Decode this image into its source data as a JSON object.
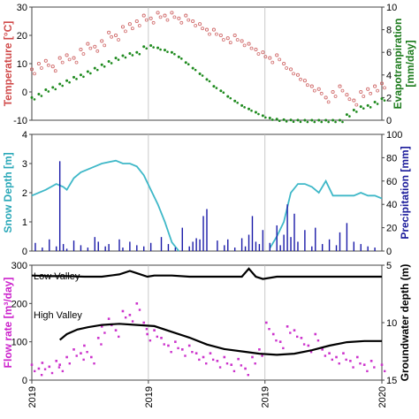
{
  "chart_data": [
    {
      "type": "scatter",
      "panel": "top",
      "ylabel_left": "Temperature [°C]",
      "ylabel_right": "Evapotranpiration [mm/day]",
      "ylim_left": [
        -10,
        30
      ],
      "ylim_right": [
        0,
        10
      ],
      "yticks_left": [
        "-10",
        "0",
        "10",
        "20",
        "30"
      ],
      "yticks_right": [
        "0",
        "2",
        "4",
        "6",
        "8",
        "10"
      ],
      "colors": {
        "temperature": "#d06a6a",
        "evapotranspiration": "#1e8a1e",
        "axis_left": "#d04a4a",
        "axis_right": "#1a7a1a"
      },
      "series": [
        {
          "name": "Temperature",
          "axis": "left",
          "x": [
            0.0,
            0.02,
            0.04,
            0.06,
            0.08,
            0.1,
            0.12,
            0.14,
            0.16,
            0.18,
            0.2,
            0.22,
            0.24,
            0.26,
            0.28,
            0.3,
            0.32,
            0.34,
            0.36,
            0.38,
            0.4,
            0.42,
            0.44,
            0.46,
            0.48,
            0.5,
            0.52,
            0.54,
            0.56,
            0.58,
            0.6,
            0.62,
            0.64,
            0.66,
            0.68,
            0.7,
            0.72,
            0.74,
            0.76,
            0.78,
            0.8,
            0.82,
            0.84,
            0.86,
            0.88,
            0.9,
            0.92,
            0.94,
            0.96,
            0.98,
            1.0
          ],
          "y": [
            8,
            10,
            11,
            9,
            12,
            13,
            12,
            15,
            17,
            16,
            18,
            21,
            20,
            23,
            24,
            25,
            27,
            26,
            28,
            27,
            28,
            26,
            27,
            25,
            24,
            22,
            22,
            20,
            19,
            20,
            18,
            17,
            15,
            14,
            12,
            13,
            10,
            8,
            6,
            4,
            2,
            1,
            -2,
            0,
            2,
            -1,
            -3,
            0,
            1,
            2,
            3
          ]
        },
        {
          "name": "Evapotranspiration",
          "axis": "right",
          "x": [
            0.0,
            0.02,
            0.04,
            0.06,
            0.08,
            0.1,
            0.12,
            0.14,
            0.16,
            0.18,
            0.2,
            0.22,
            0.24,
            0.26,
            0.28,
            0.3,
            0.32,
            0.34,
            0.36,
            0.38,
            0.4,
            0.42,
            0.44,
            0.46,
            0.48,
            0.5,
            0.52,
            0.54,
            0.56,
            0.58,
            0.6,
            0.62,
            0.64,
            0.66,
            0.68,
            0.7,
            0.72,
            0.74,
            0.76,
            0.78,
            0.8,
            0.82,
            0.84,
            0.86,
            0.88,
            0.9,
            0.92,
            0.94,
            0.96,
            0.98,
            1.0
          ],
          "y": [
            2.0,
            2.3,
            2.7,
            2.9,
            3.2,
            3.5,
            3.8,
            4.0,
            4.3,
            4.6,
            4.9,
            5.2,
            5.5,
            5.7,
            5.9,
            6.0,
            6.5,
            6.6,
            6.4,
            6.2,
            6.0,
            5.6,
            5.1,
            4.6,
            4.1,
            3.6,
            3.0,
            2.6,
            2.1,
            1.7,
            1.3,
            1.0,
            0.7,
            0.4,
            0.2,
            0.1,
            0.05,
            0.02,
            0.01,
            0.0,
            0.0,
            0.0,
            0.0,
            0.0,
            0.0,
            0.5,
            0.9,
            1.2,
            1.3,
            1.6,
            1.9
          ]
        }
      ]
    },
    {
      "type": "line",
      "panel": "middle",
      "ylabel_left": "Snow Depth [m]",
      "ylabel_right": "Precipitation [mm]",
      "ylim_left": [
        0,
        4
      ],
      "ylim_right": [
        0,
        100
      ],
      "yticks_left": [
        "0",
        "1",
        "2",
        "3",
        "4"
      ],
      "yticks_right": [
        "0",
        "20",
        "40",
        "60",
        "80",
        "100"
      ],
      "colors": {
        "snow": "#3fb8c8",
        "precipitation": "#1a1aa8",
        "axis_left": "#2aa8b8",
        "axis_right": "#1a1a9a"
      },
      "series": [
        {
          "name": "Snow Depth",
          "axis": "left",
          "x": [
            0.0,
            0.04,
            0.07,
            0.09,
            0.1,
            0.12,
            0.14,
            0.18,
            0.2,
            0.24,
            0.26,
            0.28,
            0.3,
            0.32,
            0.34,
            0.36,
            0.38,
            0.4,
            0.42,
            0.44,
            0.46,
            0.48,
            0.5,
            0.52,
            0.54,
            0.56,
            0.58,
            0.6,
            0.62,
            0.64,
            0.66,
            0.68,
            0.7,
            0.72,
            0.74,
            0.76,
            0.78,
            0.8,
            0.82,
            0.84,
            0.86,
            0.88,
            0.9,
            0.92,
            0.94,
            0.96,
            0.98,
            1.0
          ],
          "y": [
            1.9,
            2.1,
            2.3,
            2.2,
            2.1,
            2.5,
            2.7,
            2.9,
            3.0,
            3.1,
            3.0,
            3.0,
            2.9,
            2.6,
            2.1,
            1.6,
            1.0,
            0.3,
            0.0,
            null,
            null,
            null,
            null,
            null,
            null,
            null,
            null,
            null,
            null,
            null,
            null,
            0.1,
            0.5,
            1.0,
            2.0,
            2.3,
            2.3,
            2.2,
            2.0,
            2.4,
            1.9,
            1.9,
            1.9,
            1.9,
            2.0,
            1.9,
            1.9,
            1.8
          ]
        },
        {
          "name": "Precipitation",
          "axis": "right",
          "type": "bar",
          "x": [
            0.01,
            0.03,
            0.05,
            0.07,
            0.08,
            0.09,
            0.1,
            0.12,
            0.14,
            0.16,
            0.18,
            0.19,
            0.21,
            0.22,
            0.25,
            0.26,
            0.28,
            0.3,
            0.32,
            0.34,
            0.37,
            0.39,
            0.41,
            0.43,
            0.45,
            0.46,
            0.47,
            0.48,
            0.49,
            0.5,
            0.53,
            0.55,
            0.56,
            0.58,
            0.6,
            0.61,
            0.62,
            0.63,
            0.64,
            0.65,
            0.66,
            0.68,
            0.7,
            0.71,
            0.72,
            0.73,
            0.74,
            0.75,
            0.76,
            0.78,
            0.8,
            0.81,
            0.83,
            0.85,
            0.87,
            0.88,
            0.9,
            0.92,
            0.94,
            0.96,
            0.98
          ],
          "y": [
            7,
            3,
            10,
            4,
            77,
            6,
            2,
            9,
            5,
            3,
            12,
            8,
            4,
            6,
            10,
            3,
            8,
            5,
            4,
            7,
            12,
            6,
            3,
            20,
            4,
            8,
            11,
            10,
            30,
            36,
            9,
            5,
            10,
            3,
            11,
            4,
            14,
            30,
            8,
            6,
            18,
            7,
            22,
            5,
            14,
            40,
            12,
            32,
            8,
            18,
            4,
            20,
            6,
            10,
            5,
            16,
            24,
            8,
            6,
            4,
            3
          ]
        }
      ]
    },
    {
      "type": "scatter",
      "panel": "bottom",
      "ylabel_left": "Flow rate [m³/day]",
      "ylabel_right": "Groundwater depth (m)",
      "ylim_left": [
        0,
        300
      ],
      "ylim_right": [
        15,
        5
      ],
      "yticks_left": [
        "0",
        "100",
        "200",
        "300"
      ],
      "yticks_right": [
        "15",
        "10",
        "5"
      ],
      "annotations": [
        "Low Valley",
        "High Valley"
      ],
      "colors": {
        "flow": "#cc33cc",
        "groundwater": "#000000",
        "axis_left": "#cc22cc",
        "axis_right": "#000000"
      },
      "series": [
        {
          "name": "Flow rate",
          "axis": "left",
          "x": [
            0.0,
            0.02,
            0.03,
            0.05,
            0.07,
            0.08,
            0.1,
            0.12,
            0.14,
            0.15,
            0.17,
            0.19,
            0.2,
            0.22,
            0.24,
            0.26,
            0.28,
            0.3,
            0.32,
            0.33,
            0.35,
            0.37,
            0.39,
            0.41,
            0.43,
            0.45,
            0.47,
            0.49,
            0.51,
            0.53,
            0.55,
            0.57,
            0.59,
            0.61,
            0.63,
            0.65,
            0.67,
            0.69,
            0.71,
            0.73,
            0.75,
            0.77,
            0.79,
            0.81,
            0.83,
            0.85,
            0.87,
            0.89,
            0.91,
            0.93,
            0.95,
            0.97,
            1.0
          ],
          "y": [
            40,
            30,
            45,
            35,
            50,
            40,
            60,
            80,
            70,
            90,
            60,
            110,
            140,
            160,
            130,
            180,
            170,
            200,
            150,
            120,
            130,
            110,
            90,
            100,
            80,
            90,
            70,
            60,
            70,
            50,
            60,
            40,
            55,
            30,
            60,
            80,
            150,
            120,
            100,
            140,
            130,
            110,
            90,
            120,
            80,
            70,
            60,
            70,
            50,
            60,
            40,
            50,
            40
          ]
        },
        {
          "name": "Groundwater depth Low Valley",
          "axis": "right",
          "x": [
            0.0,
            0.05,
            0.1,
            0.15,
            0.2,
            0.25,
            0.28,
            0.3,
            0.33,
            0.35,
            0.4,
            0.45,
            0.5,
            0.55,
            0.6,
            0.62,
            0.64,
            0.66,
            0.7,
            0.75,
            0.8,
            0.85,
            0.9,
            0.95,
            1.0
          ],
          "y": [
            5.9,
            5.95,
            5.95,
            6.0,
            6.0,
            5.8,
            5.5,
            5.7,
            6.0,
            5.9,
            5.9,
            6.0,
            6.0,
            6.0,
            6.0,
            5.3,
            6.0,
            6.2,
            6.0,
            6.0,
            6.0,
            6.0,
            6.0,
            6.0,
            6.0
          ]
        },
        {
          "name": "Groundwater depth High Valley",
          "axis": "right",
          "x": [
            0.08,
            0.1,
            0.13,
            0.16,
            0.2,
            0.25,
            0.3,
            0.35,
            0.4,
            0.45,
            0.5,
            0.55,
            0.6,
            0.65,
            0.7,
            0.75,
            0.8,
            0.85,
            0.9,
            0.95,
            1.0
          ],
          "y": [
            11.5,
            11.0,
            10.6,
            10.4,
            10.2,
            10.1,
            10.2,
            10.3,
            10.8,
            11.3,
            11.9,
            12.3,
            12.5,
            12.7,
            12.8,
            12.7,
            12.4,
            12.0,
            11.7,
            11.6,
            11.6
          ]
        }
      ]
    }
  ],
  "x_tick_labels": [
    "2019",
    "2019",
    "2019",
    "2020"
  ]
}
